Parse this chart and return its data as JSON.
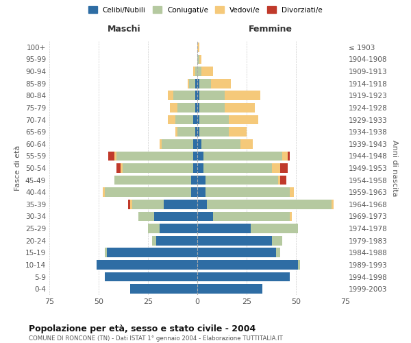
{
  "age_groups": [
    "0-4",
    "5-9",
    "10-14",
    "15-19",
    "20-24",
    "25-29",
    "30-34",
    "35-39",
    "40-44",
    "45-49",
    "50-54",
    "55-59",
    "60-64",
    "65-69",
    "70-74",
    "75-79",
    "80-84",
    "85-89",
    "90-94",
    "95-99",
    "100+"
  ],
  "birth_years": [
    "1999-2003",
    "1994-1998",
    "1989-1993",
    "1984-1988",
    "1979-1983",
    "1974-1978",
    "1969-1973",
    "1964-1968",
    "1959-1963",
    "1954-1958",
    "1949-1953",
    "1944-1948",
    "1939-1943",
    "1934-1938",
    "1929-1933",
    "1924-1928",
    "1919-1923",
    "1914-1918",
    "1909-1913",
    "1904-1908",
    "≤ 1903"
  ],
  "colors": {
    "celibi": "#2e6da4",
    "coniugati": "#b5c9a0",
    "vedovi": "#f5c97a",
    "divorziati": "#c0392b"
  },
  "males": {
    "celibi": [
      34,
      47,
      51,
      46,
      21,
      19,
      22,
      17,
      3,
      3,
      2,
      2,
      2,
      1,
      2,
      1,
      1,
      1,
      0,
      0,
      0
    ],
    "coniugati": [
      0,
      0,
      0,
      1,
      2,
      6,
      8,
      16,
      44,
      39,
      36,
      39,
      16,
      9,
      9,
      9,
      11,
      3,
      1,
      0,
      0
    ],
    "vedovi": [
      0,
      0,
      0,
      0,
      0,
      0,
      0,
      1,
      1,
      0,
      1,
      1,
      1,
      1,
      4,
      4,
      3,
      1,
      1,
      0,
      0
    ],
    "divorziati": [
      0,
      0,
      0,
      0,
      0,
      0,
      0,
      1,
      0,
      0,
      2,
      3,
      0,
      0,
      0,
      0,
      0,
      0,
      0,
      0,
      0
    ]
  },
  "females": {
    "celibi": [
      33,
      47,
      51,
      40,
      38,
      27,
      8,
      5,
      4,
      4,
      3,
      3,
      2,
      1,
      1,
      1,
      1,
      1,
      0,
      0,
      0
    ],
    "coniugati": [
      0,
      0,
      1,
      2,
      5,
      24,
      39,
      63,
      43,
      37,
      35,
      40,
      20,
      15,
      15,
      13,
      13,
      6,
      2,
      1,
      0
    ],
    "vedovi": [
      0,
      0,
      0,
      0,
      0,
      0,
      1,
      1,
      2,
      1,
      4,
      3,
      6,
      9,
      15,
      15,
      18,
      10,
      6,
      1,
      1
    ],
    "divorziati": [
      0,
      0,
      0,
      0,
      0,
      0,
      0,
      0,
      0,
      3,
      4,
      1,
      0,
      0,
      0,
      0,
      0,
      0,
      0,
      0,
      0
    ]
  },
  "title": "Popolazione per età, sesso e stato civile - 2004",
  "subtitle": "COMUNE DI RONCONE (TN) - Dati ISTAT 1° gennaio 2004 - Elaborazione TUTTITALIA.IT",
  "ylabel_left": "Fasce di età",
  "ylabel_right": "Anni di nascita",
  "xlabel_left": "Maschi",
  "xlabel_right": "Femmine",
  "xlim": 75,
  "background_color": "#ffffff",
  "grid_color": "#cccccc",
  "legend_labels": [
    "Celibi/Nubili",
    "Coniugati/e",
    "Vedovi/e",
    "Divorziati/e"
  ]
}
